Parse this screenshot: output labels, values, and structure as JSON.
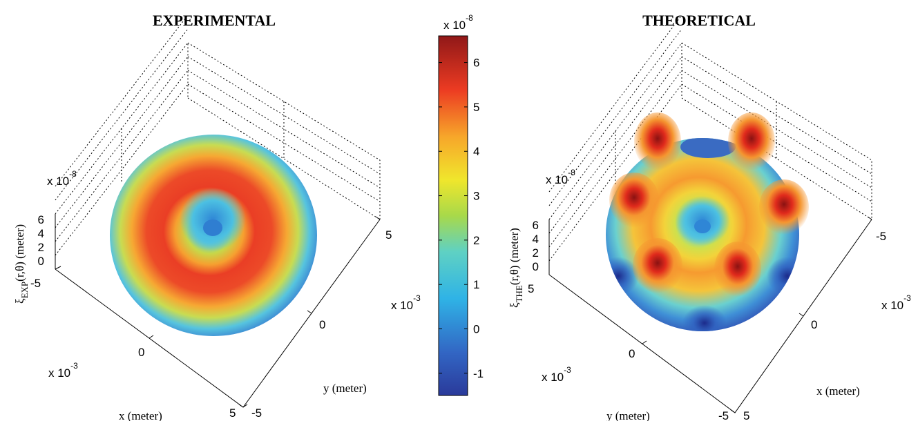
{
  "figure": {
    "panels": [
      {
        "title": "EXPERIMENTAL",
        "xlabel": "x (meter)",
        "ylabel": "y (meter)",
        "zlabel_main": "ξ",
        "zlabel_sub": "EXP",
        "zlabel_tail": "(r,θ) (meter)",
        "x_ticks": [
          "-5",
          "0",
          "5"
        ],
        "y_ticks": [
          "-5",
          "0",
          "5"
        ],
        "z_ticks": [
          "0",
          "2",
          "4",
          "6"
        ],
        "xy_exponent_base": "x 10",
        "xy_exponent_power": "-3",
        "z_exponent_base": "x 10",
        "z_exponent_power": "-8"
      },
      {
        "title": "THEORETICAL",
        "xlabel": "x (meter)",
        "ylabel": "y (meter)",
        "zlabel_main": "ξ",
        "zlabel_sub": "THE",
        "zlabel_tail": "(r,θ) (meter)",
        "x_ticks": [
          "5",
          "0",
          "-5"
        ],
        "y_ticks": [
          "5",
          "0",
          "-5"
        ],
        "z_ticks": [
          "0",
          "2",
          "4",
          "6"
        ],
        "xy_exponent_base": "x 10",
        "xy_exponent_power": "-3",
        "z_exponent_base": "x 10",
        "z_exponent_power": "-8"
      }
    ],
    "colorbar": {
      "exponent_base": "x 10",
      "exponent_power": "-8",
      "ticks": [
        "6",
        "5",
        "4",
        "3",
        "2",
        "1",
        "0",
        "-1"
      ],
      "colormap": "jet"
    }
  },
  "chart_data": [
    {
      "type": "surface",
      "title": "EXPERIMENTAL",
      "xlabel": "x (meter)",
      "ylabel": "y (meter)",
      "zlabel": "ξEXP(r,θ) (meter)",
      "xlim": [
        -0.005,
        0.005
      ],
      "ylim": [
        -0.005,
        0.005
      ],
      "zlim": [
        0,
        6e-08
      ],
      "surface": "annular ring displacement over a circular disk",
      "radial_profile": {
        "r_normalized": [
          0.0,
          0.1,
          0.2,
          0.3,
          0.45,
          0.6,
          0.75,
          0.85,
          0.95,
          1.0
        ],
        "z": [
          1e-08,
          1.5e-08,
          3.5e-08,
          5.5e-08,
          6.2e-08,
          5.5e-08,
          4e-08,
          2.5e-08,
          1.2e-08,
          5e-09
        ]
      }
    },
    {
      "type": "surface",
      "title": "THEORETICAL",
      "xlabel": "x (meter)",
      "ylabel": "y (meter)",
      "zlabel": "ξTHE(r,θ) (meter)",
      "xlim": [
        -0.005,
        0.005
      ],
      "ylim": [
        -0.005,
        0.005
      ],
      "zlim": [
        0,
        6e-08
      ],
      "surface": "six-lobed mode shape over a circular disk",
      "lobes": 6,
      "peak_value": 6.6e-08,
      "center_value": 1e-08,
      "edge_min_value": -1.2e-08
    },
    {
      "type": "colorbar",
      "colormap": "jet",
      "range": [
        -1.5e-08,
        6.6e-08
      ],
      "ticks": [
        -1e-08,
        0,
        1e-08,
        2e-08,
        3e-08,
        4e-08,
        5e-08,
        6e-08
      ]
    }
  ]
}
